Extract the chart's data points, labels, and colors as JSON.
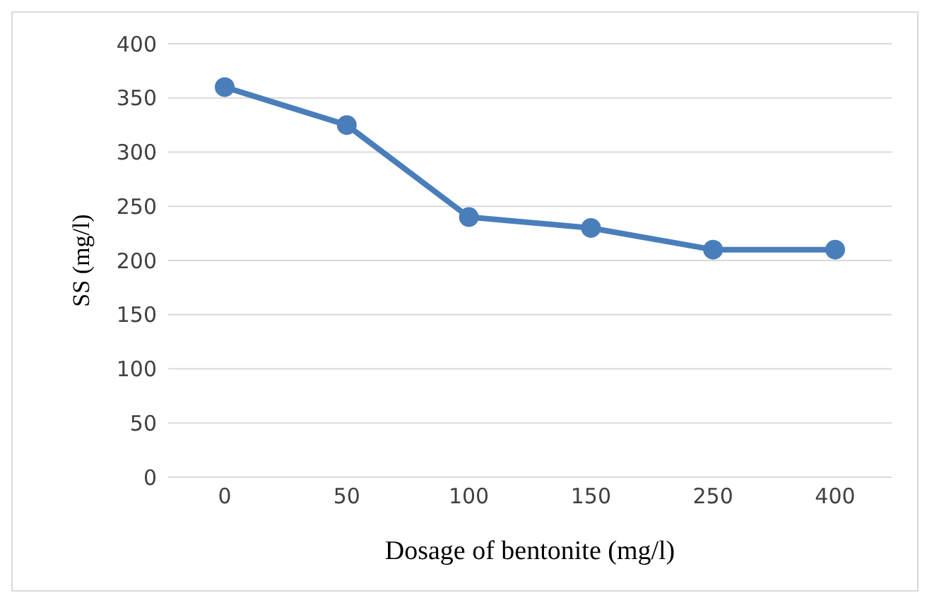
{
  "chart_data": {
    "type": "line",
    "xlabel": "Dosage of bentonite  (mg/l)",
    "ylabel": "SS (mg/l)",
    "categories": [
      "0",
      "50",
      "100",
      "150",
      "250",
      "400"
    ],
    "series": [
      {
        "color": "#4a7ebb",
        "values": [
          360,
          325,
          240,
          230,
          210,
          210
        ]
      }
    ],
    "ylim": [
      0,
      400
    ],
    "yticks": [
      0,
      50,
      100,
      150,
      200,
      250,
      300,
      350,
      400
    ],
    "grid": "y",
    "marker": "circle",
    "line_style": "solid"
  }
}
